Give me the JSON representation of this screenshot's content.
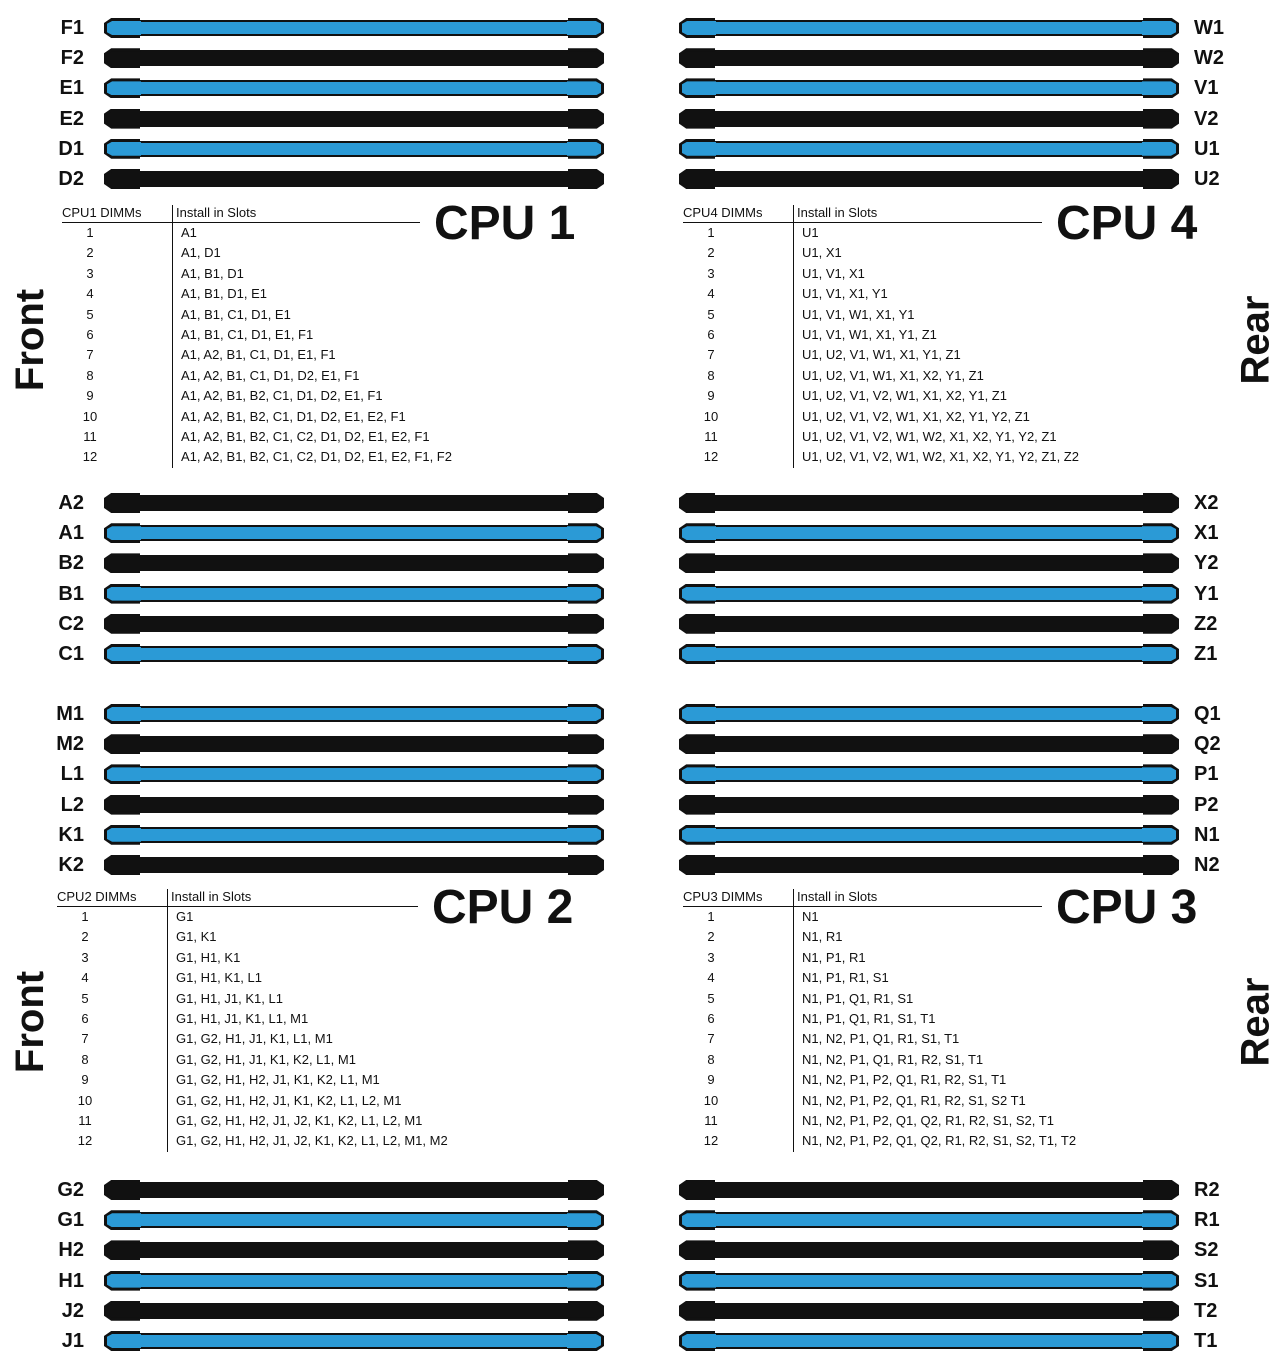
{
  "colors": {
    "blue_slot": "#2b9ad6",
    "black_slot": "#111111",
    "text": "#111111"
  },
  "side_labels": {
    "front": "Front",
    "rear": "Rear"
  },
  "slot_groups": [
    {
      "side": "left",
      "col": "left",
      "slots": [
        {
          "label": "F1",
          "color": "blue"
        },
        {
          "label": "F2",
          "color": "black"
        },
        {
          "label": "E1",
          "color": "blue"
        },
        {
          "label": "E2",
          "color": "black"
        },
        {
          "label": "D1",
          "color": "blue"
        },
        {
          "label": "D2",
          "color": "black"
        }
      ]
    },
    {
      "side": "left",
      "col": "left",
      "slots": [
        {
          "label": "A2",
          "color": "black"
        },
        {
          "label": "A1",
          "color": "blue"
        },
        {
          "label": "B2",
          "color": "black"
        },
        {
          "label": "B1",
          "color": "blue"
        },
        {
          "label": "C2",
          "color": "black"
        },
        {
          "label": "C1",
          "color": "blue"
        }
      ]
    },
    {
      "side": "left",
      "col": "left",
      "slots": [
        {
          "label": "M1",
          "color": "blue"
        },
        {
          "label": "M2",
          "color": "black"
        },
        {
          "label": "L1",
          "color": "blue"
        },
        {
          "label": "L2",
          "color": "black"
        },
        {
          "label": "K1",
          "color": "blue"
        },
        {
          "label": "K2",
          "color": "black"
        }
      ]
    },
    {
      "side": "left",
      "col": "left",
      "slots": [
        {
          "label": "G2",
          "color": "black"
        },
        {
          "label": "G1",
          "color": "blue"
        },
        {
          "label": "H2",
          "color": "black"
        },
        {
          "label": "H1",
          "color": "blue"
        },
        {
          "label": "J2",
          "color": "black"
        },
        {
          "label": "J1",
          "color": "blue"
        }
      ]
    },
    {
      "side": "right",
      "col": "right",
      "slots": [
        {
          "label": "W1",
          "color": "blue"
        },
        {
          "label": "W2",
          "color": "black"
        },
        {
          "label": "V1",
          "color": "blue"
        },
        {
          "label": "V2",
          "color": "black"
        },
        {
          "label": "U1",
          "color": "blue"
        },
        {
          "label": "U2",
          "color": "black"
        }
      ]
    },
    {
      "side": "right",
      "col": "right",
      "slots": [
        {
          "label": "X2",
          "color": "black"
        },
        {
          "label": "X1",
          "color": "blue"
        },
        {
          "label": "Y2",
          "color": "black"
        },
        {
          "label": "Y1",
          "color": "blue"
        },
        {
          "label": "Z2",
          "color": "black"
        },
        {
          "label": "Z1",
          "color": "blue"
        }
      ]
    },
    {
      "side": "right",
      "col": "right",
      "slots": [
        {
          "label": "Q1",
          "color": "blue"
        },
        {
          "label": "Q2",
          "color": "black"
        },
        {
          "label": "P1",
          "color": "blue"
        },
        {
          "label": "P2",
          "color": "black"
        },
        {
          "label": "N1",
          "color": "blue"
        },
        {
          "label": "N2",
          "color": "black"
        }
      ]
    },
    {
      "side": "right",
      "col": "right",
      "slots": [
        {
          "label": "R2",
          "color": "black"
        },
        {
          "label": "R1",
          "color": "blue"
        },
        {
          "label": "S2",
          "color": "black"
        },
        {
          "label": "S1",
          "color": "blue"
        },
        {
          "label": "T2",
          "color": "black"
        },
        {
          "label": "T1",
          "color": "blue"
        }
      ]
    }
  ],
  "cpu_tables": [
    {
      "title": "CPU 1",
      "head_dimms": "CPU1 DIMMs",
      "head_slots": "Install in Slots",
      "rows": [
        [
          "1",
          "A1"
        ],
        [
          "2",
          "A1, D1"
        ],
        [
          "3",
          "A1, B1, D1"
        ],
        [
          "4",
          "A1, B1, D1, E1"
        ],
        [
          "5",
          "A1, B1, C1, D1, E1"
        ],
        [
          "6",
          "A1, B1, C1, D1, E1, F1"
        ],
        [
          "7",
          "A1, A2, B1, C1, D1, E1, F1"
        ],
        [
          "8",
          "A1, A2, B1, C1, D1, D2, E1, F1"
        ],
        [
          "9",
          "A1, A2, B1, B2, C1, D1, D2, E1, F1"
        ],
        [
          "10",
          "A1, A2, B1, B2, C1, D1, D2, E1, E2, F1"
        ],
        [
          "11",
          "A1, A2, B1, B2, C1, C2, D1, D2, E1, E2, F1"
        ],
        [
          "12",
          "A1, A2, B1, B2, C1, C2, D1, D2, E1, E2, F1, F2"
        ]
      ]
    },
    {
      "title": "CPU 4",
      "head_dimms": "CPU4 DIMMs",
      "head_slots": "Install in Slots",
      "rows": [
        [
          "1",
          "U1"
        ],
        [
          "2",
          "U1, X1"
        ],
        [
          "3",
          "U1, V1, X1"
        ],
        [
          "4",
          "U1, V1, X1, Y1"
        ],
        [
          "5",
          "U1, V1, W1, X1, Y1"
        ],
        [
          "6",
          "U1, V1, W1, X1, Y1, Z1"
        ],
        [
          "7",
          "U1, U2, V1, W1, X1, Y1, Z1"
        ],
        [
          "8",
          "U1, U2, V1, W1, X1, X2, Y1, Z1"
        ],
        [
          "9",
          "U1, U2, V1, V2, W1, X1, X2, Y1, Z1"
        ],
        [
          "10",
          "U1, U2, V1, V2, W1, X1, X2, Y1, Y2, Z1"
        ],
        [
          "11",
          "U1, U2, V1, V2, W1, W2, X1, X2, Y1, Y2, Z1"
        ],
        [
          "12",
          "U1, U2, V1, V2, W1, W2, X1, X2, Y1, Y2, Z1, Z2"
        ]
      ]
    },
    {
      "title": "CPU 2",
      "head_dimms": "CPU2 DIMMs",
      "head_slots": "Install in Slots",
      "rows": [
        [
          "1",
          "G1"
        ],
        [
          "2",
          "G1, K1"
        ],
        [
          "3",
          "G1, H1, K1"
        ],
        [
          "4",
          "G1, H1, K1, L1"
        ],
        [
          "5",
          "G1, H1, J1, K1, L1"
        ],
        [
          "6",
          "G1, H1, J1, K1, L1, M1"
        ],
        [
          "7",
          "G1, G2, H1, J1, K1, L1, M1"
        ],
        [
          "8",
          "G1, G2, H1, J1, K1, K2, L1, M1"
        ],
        [
          "9",
          "G1, G2, H1, H2, J1, K1, K2, L1, M1"
        ],
        [
          "10",
          "G1, G2, H1, H2, J1, K1, K2, L1, L2, M1"
        ],
        [
          "11",
          "G1, G2, H1, H2, J1, J2, K1, K2, L1, L2, M1"
        ],
        [
          "12",
          "G1, G2, H1, H2, J1, J2, K1, K2, L1, L2, M1, M2"
        ]
      ]
    },
    {
      "title": "CPU 3",
      "head_dimms": "CPU3 DIMMs",
      "head_slots": "Install in Slots",
      "rows": [
        [
          "1",
          "N1"
        ],
        [
          "2",
          "N1, R1"
        ],
        [
          "3",
          "N1, P1, R1"
        ],
        [
          "4",
          "N1, P1, R1, S1"
        ],
        [
          "5",
          "N1, P1, Q1, R1, S1"
        ],
        [
          "6",
          "N1, P1, Q1, R1, S1, T1"
        ],
        [
          "7",
          "N1, N2, P1, Q1, R1, S1, T1"
        ],
        [
          "8",
          "N1, N2, P1, Q1, R1, R2, S1, T1"
        ],
        [
          "9",
          "N1, N2, P1, P2, Q1, R1, R2, S1, T1"
        ],
        [
          "10",
          "N1, N2, P1, P2, Q1, R1, R2, S1, S2 T1"
        ],
        [
          "11",
          "N1, N2, P1, P2, Q1, Q2, R1, R2, S1, S2, T1"
        ],
        [
          "12",
          "N1, N2, P1, P2, Q1, Q2, R1, R2, S1, S2, T1, T2"
        ]
      ]
    }
  ]
}
